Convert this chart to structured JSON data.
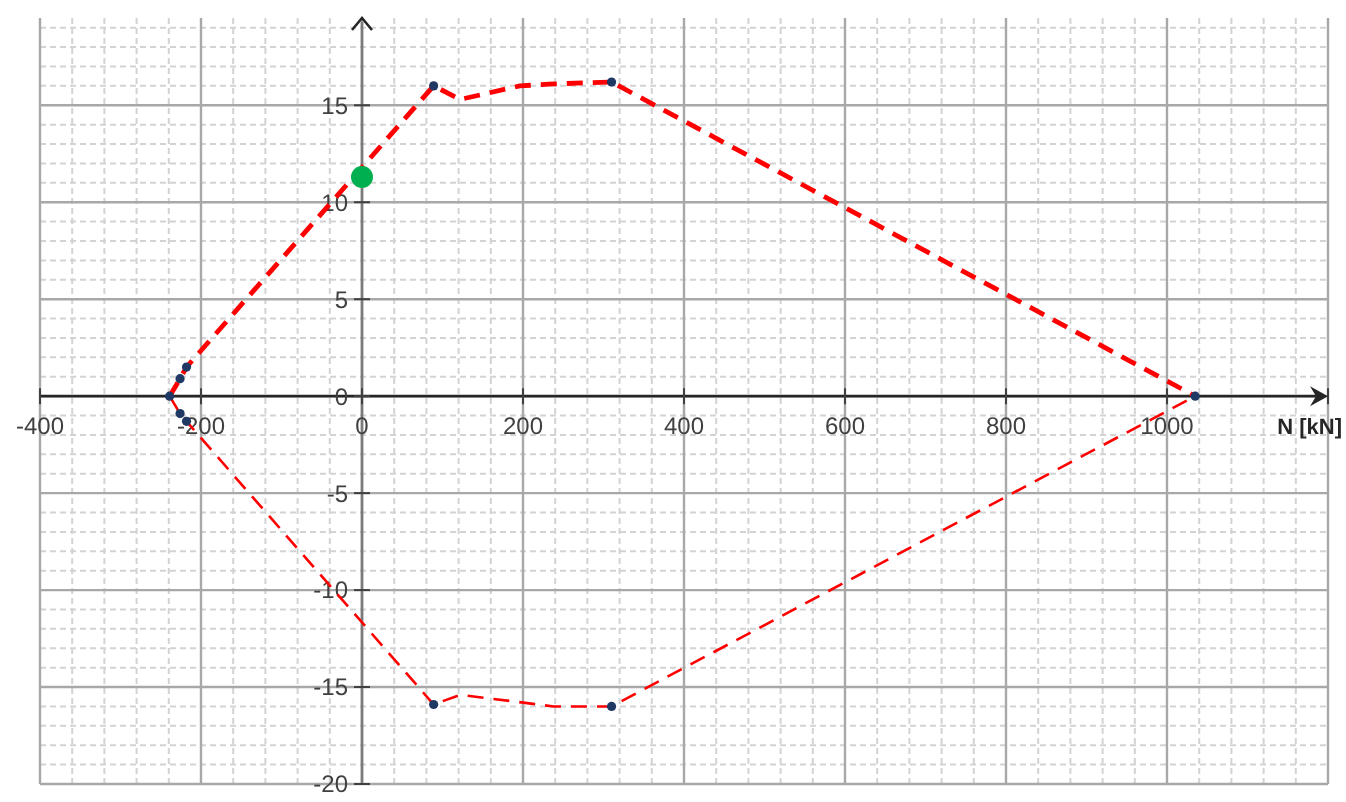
{
  "chart_data": {
    "type": "line",
    "xlabel": "N [kN]",
    "xlim": [
      -400,
      1200
    ],
    "ylim": [
      -20,
      19.5
    ],
    "xticks": [
      -400,
      -200,
      0,
      200,
      400,
      600,
      800,
      1000,
      {
        "value": 1200,
        "label": null
      }
    ],
    "yticks": [
      -20,
      -15,
      -10,
      -5,
      0,
      5,
      10,
      15
    ],
    "grid": true,
    "series": [
      {
        "color": "#ff0000",
        "line_style": "dashed",
        "marker": "none",
        "x": [
          -239,
          -226,
          -218,
          89,
          122,
          196,
          238,
          310,
          1035
        ],
        "values": [
          0,
          0.9,
          1.5,
          16,
          15.3,
          16,
          16.1,
          16.2,
          0
        ]
      },
      {
        "color": "#ff0000",
        "line_style": "dashed",
        "marker": "none",
        "x": [
          -239,
          -226,
          -218,
          89,
          122,
          238,
          310,
          1035
        ],
        "values": [
          0,
          -0.9,
          -1.3,
          -15.9,
          -15.4,
          -16,
          -16,
          0
        ]
      },
      {
        "type": "scatter",
        "color": "#1f3864",
        "marker": "circle",
        "x": [
          -239,
          -226,
          -218,
          89,
          310,
          1035,
          -226,
          -218,
          89,
          310
        ],
        "values": [
          0,
          0.9,
          1.5,
          16,
          16.2,
          0,
          -0.9,
          -1.3,
          -15.9,
          -16
        ]
      },
      {
        "type": "scatter",
        "color": "#00b050",
        "marker": "circle",
        "x": [
          0
        ],
        "values": [
          11.3
        ]
      }
    ]
  }
}
